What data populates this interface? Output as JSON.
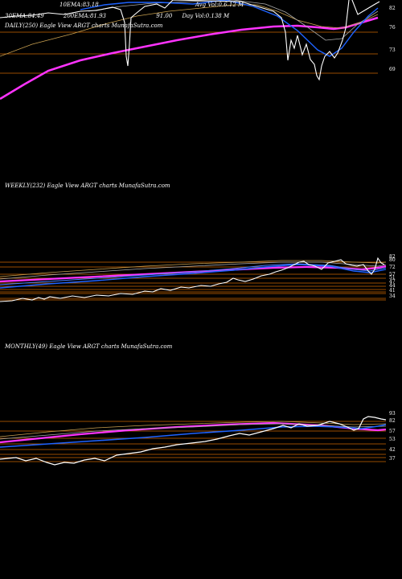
{
  "daily": {
    "title": "DAILY(250) Eagle  View  ARGT charts MunafaSutra.com",
    "stats_row1": [
      {
        "label": "",
        "value": ""
      },
      {
        "label": "10EMA:",
        "value": "83.18"
      },
      {
        "label": "",
        "value": ""
      },
      {
        "label": "Avg Vol:",
        "value": "0.6.12  M"
      }
    ],
    "stats_row2": [
      {
        "label": "30EMA:",
        "value": "84.49"
      },
      {
        "label": "200EMA:",
        "value": "81.93"
      },
      {
        "label": "",
        "value": "91.00"
      },
      {
        "label": "Day Vol:",
        "value": "0.138  M"
      }
    ],
    "axis_labels": [
      "82",
      "76",
      "73",
      "69"
    ]
  },
  "weekly": {
    "title": "WEEKLY(232) Eagle  View  ARGT charts MunafaSutra.com",
    "axis_labels": [
      "82",
      "80",
      "72",
      "57",
      "51",
      "47",
      "44",
      "41",
      "34"
    ]
  },
  "monthly": {
    "title": "MONTHLY(49) Eagle  View  ARGT charts MunafaSutra.com",
    "axis_labels": [
      "93",
      "82",
      "57",
      "53",
      "42",
      "37"
    ]
  },
  "colors": {
    "price": "#ffffff",
    "ema_short": "#1e63ff",
    "ema_long": "#ff33ff",
    "ema_mid": "#c8a050",
    "level": "#cc6600"
  }
}
